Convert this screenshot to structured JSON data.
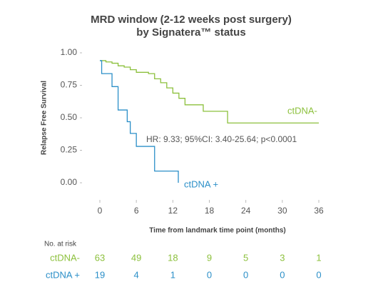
{
  "chart_data": {
    "type": "step",
    "title": [
      "MRD window (2-12 weeks post surgery)",
      "by Signatera™ status"
    ],
    "x_label": "Time from landmark time point (months)",
    "y_label": "Relapse Free Survival",
    "annotation": "HR: 9.33; 95%CI: 3.40-25.64; p<0.0001",
    "xlim": [
      0,
      36
    ],
    "ylim": [
      0,
      1
    ],
    "xticks": [
      0,
      6,
      12,
      18,
      24,
      30,
      36
    ],
    "yticks": [
      {
        "value": 1,
        "label": "1.00"
      },
      {
        "value": 0.75,
        "label": "0.75"
      },
      {
        "value": 0.5,
        "label": "0.50"
      },
      {
        "value": 0.25,
        "label": "0.25"
      },
      {
        "value": 0,
        "label": "0.00"
      }
    ],
    "risk_table_title": "No. at risk",
    "series": [
      {
        "name": "ctDNA-",
        "color": "#8cc03c",
        "x": [
          0,
          1,
          2,
          3,
          4,
          5,
          6,
          8,
          9,
          10,
          11,
          12,
          13,
          14,
          17,
          21,
          36
        ],
        "values": [
          0.94,
          0.93,
          0.92,
          0.9,
          0.89,
          0.87,
          0.85,
          0.84,
          0.8,
          0.77,
          0.73,
          0.69,
          0.65,
          0.6,
          0.55,
          0.46,
          0.46
        ],
        "at_risk": [
          63,
          49,
          18,
          9,
          5,
          3,
          1
        ]
      },
      {
        "name": "ctDNA +",
        "color": "#2b8fc8",
        "x": [
          0,
          0.3,
          2,
          3,
          4.5,
          5,
          6,
          9,
          12.9
        ],
        "values": [
          0.94,
          0.84,
          0.74,
          0.56,
          0.47,
          0.38,
          0.28,
          0.09,
          0
        ],
        "at_risk": [
          19,
          4,
          1,
          0,
          0,
          0,
          0
        ]
      }
    ]
  }
}
